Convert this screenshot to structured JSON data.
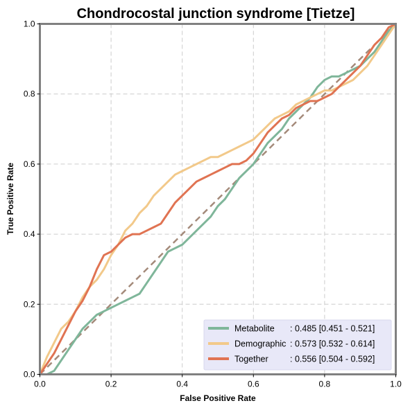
{
  "chart_data": {
    "type": "line",
    "title": "Chondrocostal junction syndrome [Tietze]",
    "xlabel": "False Positive Rate",
    "ylabel": "True Positive Rate",
    "xlim": [
      0,
      1
    ],
    "ylim": [
      0,
      1
    ],
    "x_ticks": [
      "0.0",
      "0.2",
      "0.4",
      "0.6",
      "0.8",
      "1.0"
    ],
    "y_ticks": [
      "0.0",
      "0.2",
      "0.4",
      "0.6",
      "0.8",
      "1.0"
    ],
    "grid": true,
    "legend_position": "lower-right",
    "reference_line": {
      "x": [
        0,
        1
      ],
      "y": [
        0,
        1
      ],
      "color": "#a48a7a",
      "style": "dashed"
    },
    "series": [
      {
        "name": "Metabolite",
        "legend_label": "Metabolite",
        "legend_value": ": 0.485 [0.451 - 0.521]",
        "color": "#7fb69a",
        "x": [
          0,
          0.02,
          0.04,
          0.06,
          0.08,
          0.1,
          0.12,
          0.14,
          0.16,
          0.18,
          0.2,
          0.22,
          0.24,
          0.26,
          0.28,
          0.3,
          0.32,
          0.34,
          0.36,
          0.38,
          0.4,
          0.42,
          0.44,
          0.46,
          0.48,
          0.5,
          0.52,
          0.54,
          0.56,
          0.58,
          0.6,
          0.62,
          0.64,
          0.66,
          0.68,
          0.7,
          0.72,
          0.74,
          0.76,
          0.78,
          0.8,
          0.82,
          0.84,
          0.86,
          0.88,
          0.9,
          0.92,
          0.94,
          0.96,
          0.98,
          1.0
        ],
        "y": [
          0,
          0.0,
          0.01,
          0.04,
          0.07,
          0.1,
          0.13,
          0.15,
          0.17,
          0.18,
          0.19,
          0.2,
          0.21,
          0.22,
          0.23,
          0.26,
          0.29,
          0.32,
          0.35,
          0.36,
          0.37,
          0.39,
          0.41,
          0.43,
          0.45,
          0.48,
          0.5,
          0.53,
          0.56,
          0.58,
          0.6,
          0.63,
          0.66,
          0.68,
          0.7,
          0.73,
          0.75,
          0.77,
          0.79,
          0.82,
          0.84,
          0.85,
          0.85,
          0.86,
          0.87,
          0.88,
          0.9,
          0.92,
          0.95,
          0.98,
          1.0
        ]
      },
      {
        "name": "Demographic",
        "legend_label": "Demographic",
        "legend_value": ": 0.573 [0.532 - 0.614]",
        "color": "#f2c98a",
        "x": [
          0,
          0.02,
          0.04,
          0.06,
          0.08,
          0.1,
          0.12,
          0.14,
          0.16,
          0.18,
          0.2,
          0.22,
          0.24,
          0.26,
          0.28,
          0.3,
          0.32,
          0.34,
          0.36,
          0.38,
          0.4,
          0.42,
          0.44,
          0.46,
          0.48,
          0.5,
          0.52,
          0.54,
          0.56,
          0.58,
          0.6,
          0.62,
          0.64,
          0.66,
          0.68,
          0.7,
          0.72,
          0.74,
          0.76,
          0.78,
          0.8,
          0.82,
          0.84,
          0.86,
          0.88,
          0.9,
          0.92,
          0.94,
          0.96,
          0.98,
          1.0
        ],
        "y": [
          0,
          0.05,
          0.09,
          0.13,
          0.15,
          0.18,
          0.22,
          0.25,
          0.27,
          0.3,
          0.34,
          0.37,
          0.41,
          0.43,
          0.46,
          0.48,
          0.51,
          0.53,
          0.55,
          0.57,
          0.58,
          0.59,
          0.6,
          0.61,
          0.62,
          0.62,
          0.63,
          0.64,
          0.65,
          0.66,
          0.67,
          0.69,
          0.71,
          0.73,
          0.74,
          0.75,
          0.77,
          0.78,
          0.79,
          0.8,
          0.81,
          0.81,
          0.82,
          0.83,
          0.84,
          0.86,
          0.88,
          0.91,
          0.94,
          0.97,
          1.0
        ]
      },
      {
        "name": "Together",
        "legend_label": "Together",
        "legend_value": ": 0.556 [0.504 - 0.592]",
        "color": "#e07352",
        "x": [
          0,
          0.02,
          0.04,
          0.06,
          0.08,
          0.1,
          0.12,
          0.14,
          0.16,
          0.18,
          0.2,
          0.22,
          0.24,
          0.26,
          0.28,
          0.3,
          0.32,
          0.34,
          0.36,
          0.38,
          0.4,
          0.42,
          0.44,
          0.46,
          0.48,
          0.5,
          0.52,
          0.54,
          0.56,
          0.58,
          0.6,
          0.62,
          0.64,
          0.66,
          0.68,
          0.7,
          0.72,
          0.74,
          0.76,
          0.78,
          0.8,
          0.82,
          0.84,
          0.86,
          0.88,
          0.9,
          0.92,
          0.94,
          0.96,
          0.98,
          1.0
        ],
        "y": [
          0,
          0.03,
          0.06,
          0.1,
          0.14,
          0.18,
          0.21,
          0.25,
          0.3,
          0.34,
          0.35,
          0.37,
          0.39,
          0.4,
          0.4,
          0.41,
          0.42,
          0.43,
          0.46,
          0.49,
          0.51,
          0.53,
          0.55,
          0.56,
          0.57,
          0.58,
          0.59,
          0.6,
          0.6,
          0.61,
          0.63,
          0.66,
          0.69,
          0.71,
          0.73,
          0.74,
          0.76,
          0.77,
          0.78,
          0.78,
          0.79,
          0.8,
          0.82,
          0.84,
          0.86,
          0.88,
          0.91,
          0.94,
          0.96,
          0.99,
          1.0
        ]
      }
    ]
  }
}
